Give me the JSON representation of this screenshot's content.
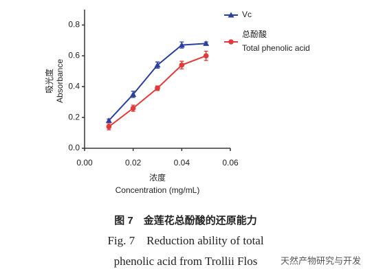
{
  "chart_data": {
    "type": "line",
    "x": [
      0.01,
      0.02,
      0.03,
      0.04,
      0.05
    ],
    "series": [
      {
        "name": "Vc",
        "color": "#2b3f9e",
        "marker": "triangle",
        "values": [
          0.18,
          0.35,
          0.54,
          0.67,
          0.68
        ],
        "errors": [
          0.01,
          0.02,
          0.02,
          0.02,
          0.01
        ]
      },
      {
        "name": "总酚酸",
        "name_en": "Total phenolic acid",
        "color": "#e03a3a",
        "marker": "circle",
        "values": [
          0.14,
          0.26,
          0.39,
          0.54,
          0.6
        ],
        "errors": [
          0.02,
          0.02,
          0.015,
          0.025,
          0.03
        ]
      }
    ],
    "xlim": [
      0,
      0.06
    ],
    "xticks": [
      {
        "value": 0,
        "label": "0.00"
      },
      {
        "value": 0.02,
        "label": "0.02"
      },
      {
        "value": 0.04,
        "label": "0.04"
      },
      {
        "value": 0.06,
        "label": "0.06"
      }
    ],
    "ylim": [
      0,
      0.9
    ],
    "yticks": [
      {
        "value": 0,
        "label": "0.0"
      },
      {
        "value": 0.2,
        "label": "0.2"
      },
      {
        "value": 0.4,
        "label": "0.4"
      },
      {
        "value": 0.6,
        "label": "0.6"
      },
      {
        "value": 0.8,
        "label": "0.8"
      }
    ],
    "ylabel_cn": "吸光度",
    "ylabel": "Absorbance",
    "xlabel_cn": "浓度",
    "xlabel": "Concentration (mg/mL)",
    "grid": false
  },
  "caption": {
    "cn": "图 7　金莲花总酚酸的还原能力",
    "en_line1": "Fig. 7　Reduction ability of total",
    "en_line2": "phenolic acid from Trollii Flos"
  },
  "watermark": "天然产物研究与开发"
}
